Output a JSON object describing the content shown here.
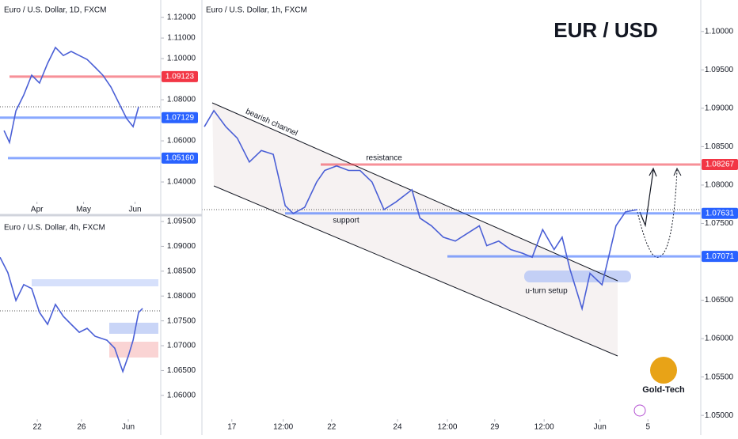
{
  "charts": [
    {
      "type": "line",
      "title": "Euro / U.S. Dollar, 1h, FXCM",
      "series": [
        {
          "color": "#4a5fd6",
          "x": [
            0.5,
            2.4,
            4.8,
            7.1,
            9.5,
            11.9,
            14.3,
            16.7,
            18.3,
            20.6,
            23.0,
            24.6,
            27.0,
            29.4,
            31.7,
            34.1,
            36.5,
            38.9,
            42.1,
            43.7,
            46.0,
            48.4,
            50.8,
            53.2,
            55.6,
            57.1,
            59.5,
            61.9,
            64.3,
            66.2,
            68.3,
            70.6,
            72.2,
            73.8,
            76.2,
            77.8,
            80.2,
            81.7,
            83.0,
            84.9,
            87.3
          ],
          "values": [
            1.0876,
            1.0897,
            1.0876,
            1.0861,
            1.083,
            1.0845,
            1.084,
            1.0773,
            1.0763,
            1.0771,
            1.0804,
            1.0819,
            1.0825,
            1.0819,
            1.0819,
            1.0804,
            1.0768,
            1.0778,
            1.0794,
            1.0757,
            1.0747,
            1.0732,
            1.0727,
            1.0737,
            1.0747,
            1.0721,
            1.0727,
            1.0716,
            1.0711,
            1.0706,
            1.0742,
            1.0716,
            1.0732,
            1.069,
            1.0639,
            1.0685,
            1.067,
            1.0711,
            1.0747,
            1.0765,
            1.0768
          ]
        }
      ],
      "xlim": [
        0,
        100
      ],
      "ylim": [
        1.0495,
        1.1041
      ],
      "xticks": [
        {
          "value": 6,
          "label": "17"
        },
        {
          "value": 16.3,
          "label": "12:00"
        },
        {
          "value": 26,
          "label": "22"
        },
        {
          "value": 39.2,
          "label": "24"
        },
        {
          "value": 49.2,
          "label": "12:00"
        },
        {
          "value": 58.7,
          "label": "29"
        },
        {
          "value": 68.6,
          "label": "12:00"
        },
        {
          "value": 79.8,
          "label": "Jun"
        },
        {
          "value": 89.4,
          "label": "5"
        }
      ],
      "yticks": [
        {
          "value": 1.1,
          "label": "1.10000"
        },
        {
          "value": 1.095,
          "label": "1.09500"
        },
        {
          "value": 1.09,
          "label": "1.09000"
        },
        {
          "value": 1.085,
          "label": "1.08500"
        },
        {
          "value": 1.08,
          "label": "1.08000"
        },
        {
          "value": 1.075,
          "label": "1.07500"
        },
        {
          "value": 1.065,
          "label": "1.06500"
        },
        {
          "value": 1.06,
          "label": "1.06000"
        },
        {
          "value": 1.055,
          "label": "1.05500"
        },
        {
          "value": 1.05,
          "label": "1.05000"
        }
      ],
      "levels": [
        {
          "value": 1.08267,
          "color": "#f23645"
        },
        {
          "value": 1.07631,
          "color": "#2962ff"
        },
        {
          "value": 1.07071,
          "color": "#2962ff"
        }
      ],
      "annotations": [
        "EUR / USD",
        "bearish channel",
        "resistance",
        "support",
        "u-turn setup",
        "Gold-Tech"
      ]
    },
    {
      "type": "line",
      "title": "Euro / U.S. Dollar, 1D, FXCM",
      "series": [
        {
          "color": "#4a5fd6",
          "x": [
            2.5,
            5.9,
            9.9,
            14.8,
            19.7,
            24.6,
            29.6,
            34.5,
            39.4,
            44.3,
            49.3,
            54.2,
            59.1,
            64.0,
            69.0,
            73.9,
            78.8,
            82.8,
            86.2
          ],
          "values": [
            1.065,
            1.0592,
            1.0746,
            1.0823,
            1.0919,
            1.0881,
            1.0977,
            1.1054,
            1.1015,
            1.1035,
            1.1015,
            1.0996,
            1.0958,
            1.0919,
            1.0862,
            1.0785,
            1.0708,
            1.0669,
            1.0765
          ]
        }
      ],
      "xlim": [
        0,
        100
      ],
      "ylim": [
        1.0304,
        1.1285
      ],
      "xticks": [
        {
          "value": 23,
          "label": "Apr"
        },
        {
          "value": 52,
          "label": "May"
        },
        {
          "value": 84,
          "label": "Jun"
        }
      ],
      "yticks": [
        {
          "value": 1.12,
          "label": "1.12000"
        },
        {
          "value": 1.11,
          "label": "1.11000"
        },
        {
          "value": 1.1,
          "label": "1.10000"
        },
        {
          "value": 1.08,
          "label": "1.08000"
        },
        {
          "value": 1.06,
          "label": "1.06000"
        },
        {
          "value": 1.04,
          "label": "1.04000"
        }
      ],
      "levels": [
        {
          "value": 1.09123,
          "color": "#f23645"
        },
        {
          "value": 1.07129,
          "color": "#2962ff"
        },
        {
          "value": 1.0516,
          "label": "1.05160",
          "color": "#2962ff"
        }
      ]
    },
    {
      "type": "line",
      "title": "Euro / U.S. Dollar, 4h, FXCM",
      "series": [
        {
          "color": "#4a5fd6",
          "x": [
            0,
            4.9,
            9.9,
            14.8,
            19.7,
            24.6,
            29.6,
            34.5,
            39.4,
            44.3,
            49.3,
            54.2,
            59.1,
            66.5,
            71.4,
            76.4,
            79.8,
            82.8,
            86.2,
            88.7
          ],
          "values": [
            1.0878,
            1.0847,
            1.0791,
            1.0823,
            1.0815,
            1.0767,
            1.0743,
            1.0783,
            1.0759,
            1.0743,
            1.0727,
            1.0735,
            1.0719,
            1.0711,
            1.0695,
            1.0648,
            1.0679,
            1.0711,
            1.0767,
            1.0775
          ]
        }
      ],
      "xlim": [
        0,
        100
      ],
      "ylim": [
        1.0552,
        1.0958
      ],
      "xticks": [
        {
          "value": 23.2,
          "label": "22"
        },
        {
          "value": 50.7,
          "label": "26"
        },
        {
          "value": 79.8,
          "label": "Jun"
        }
      ],
      "yticks": [
        {
          "value": 1.095,
          "label": "1.09500"
        },
        {
          "value": 1.09,
          "label": "1.09000"
        },
        {
          "value": 1.085,
          "label": "1.08500"
        },
        {
          "value": 1.08,
          "label": "1.08000"
        },
        {
          "value": 1.075,
          "label": "1.07500"
        },
        {
          "value": 1.07,
          "label": "1.07000"
        },
        {
          "value": 1.065,
          "label": "1.06500"
        },
        {
          "value": 1.06,
          "label": "1.06000"
        }
      ]
    }
  ]
}
